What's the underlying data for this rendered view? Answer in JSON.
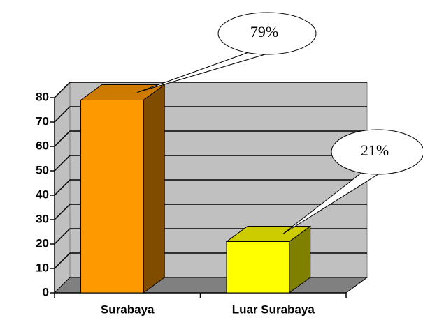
{
  "chart_data": {
    "type": "bar3d",
    "categories": [
      "Surabaya",
      "Luar Surabaya"
    ],
    "values": [
      79,
      21
    ],
    "value_labels": [
      "79%",
      "21%"
    ],
    "colors": [
      "#ff9900",
      "#ffff00"
    ],
    "ylim": [
      0,
      80
    ],
    "yticks": [
      0,
      10,
      20,
      30,
      40,
      50,
      60,
      70,
      80
    ],
    "grid": true
  }
}
